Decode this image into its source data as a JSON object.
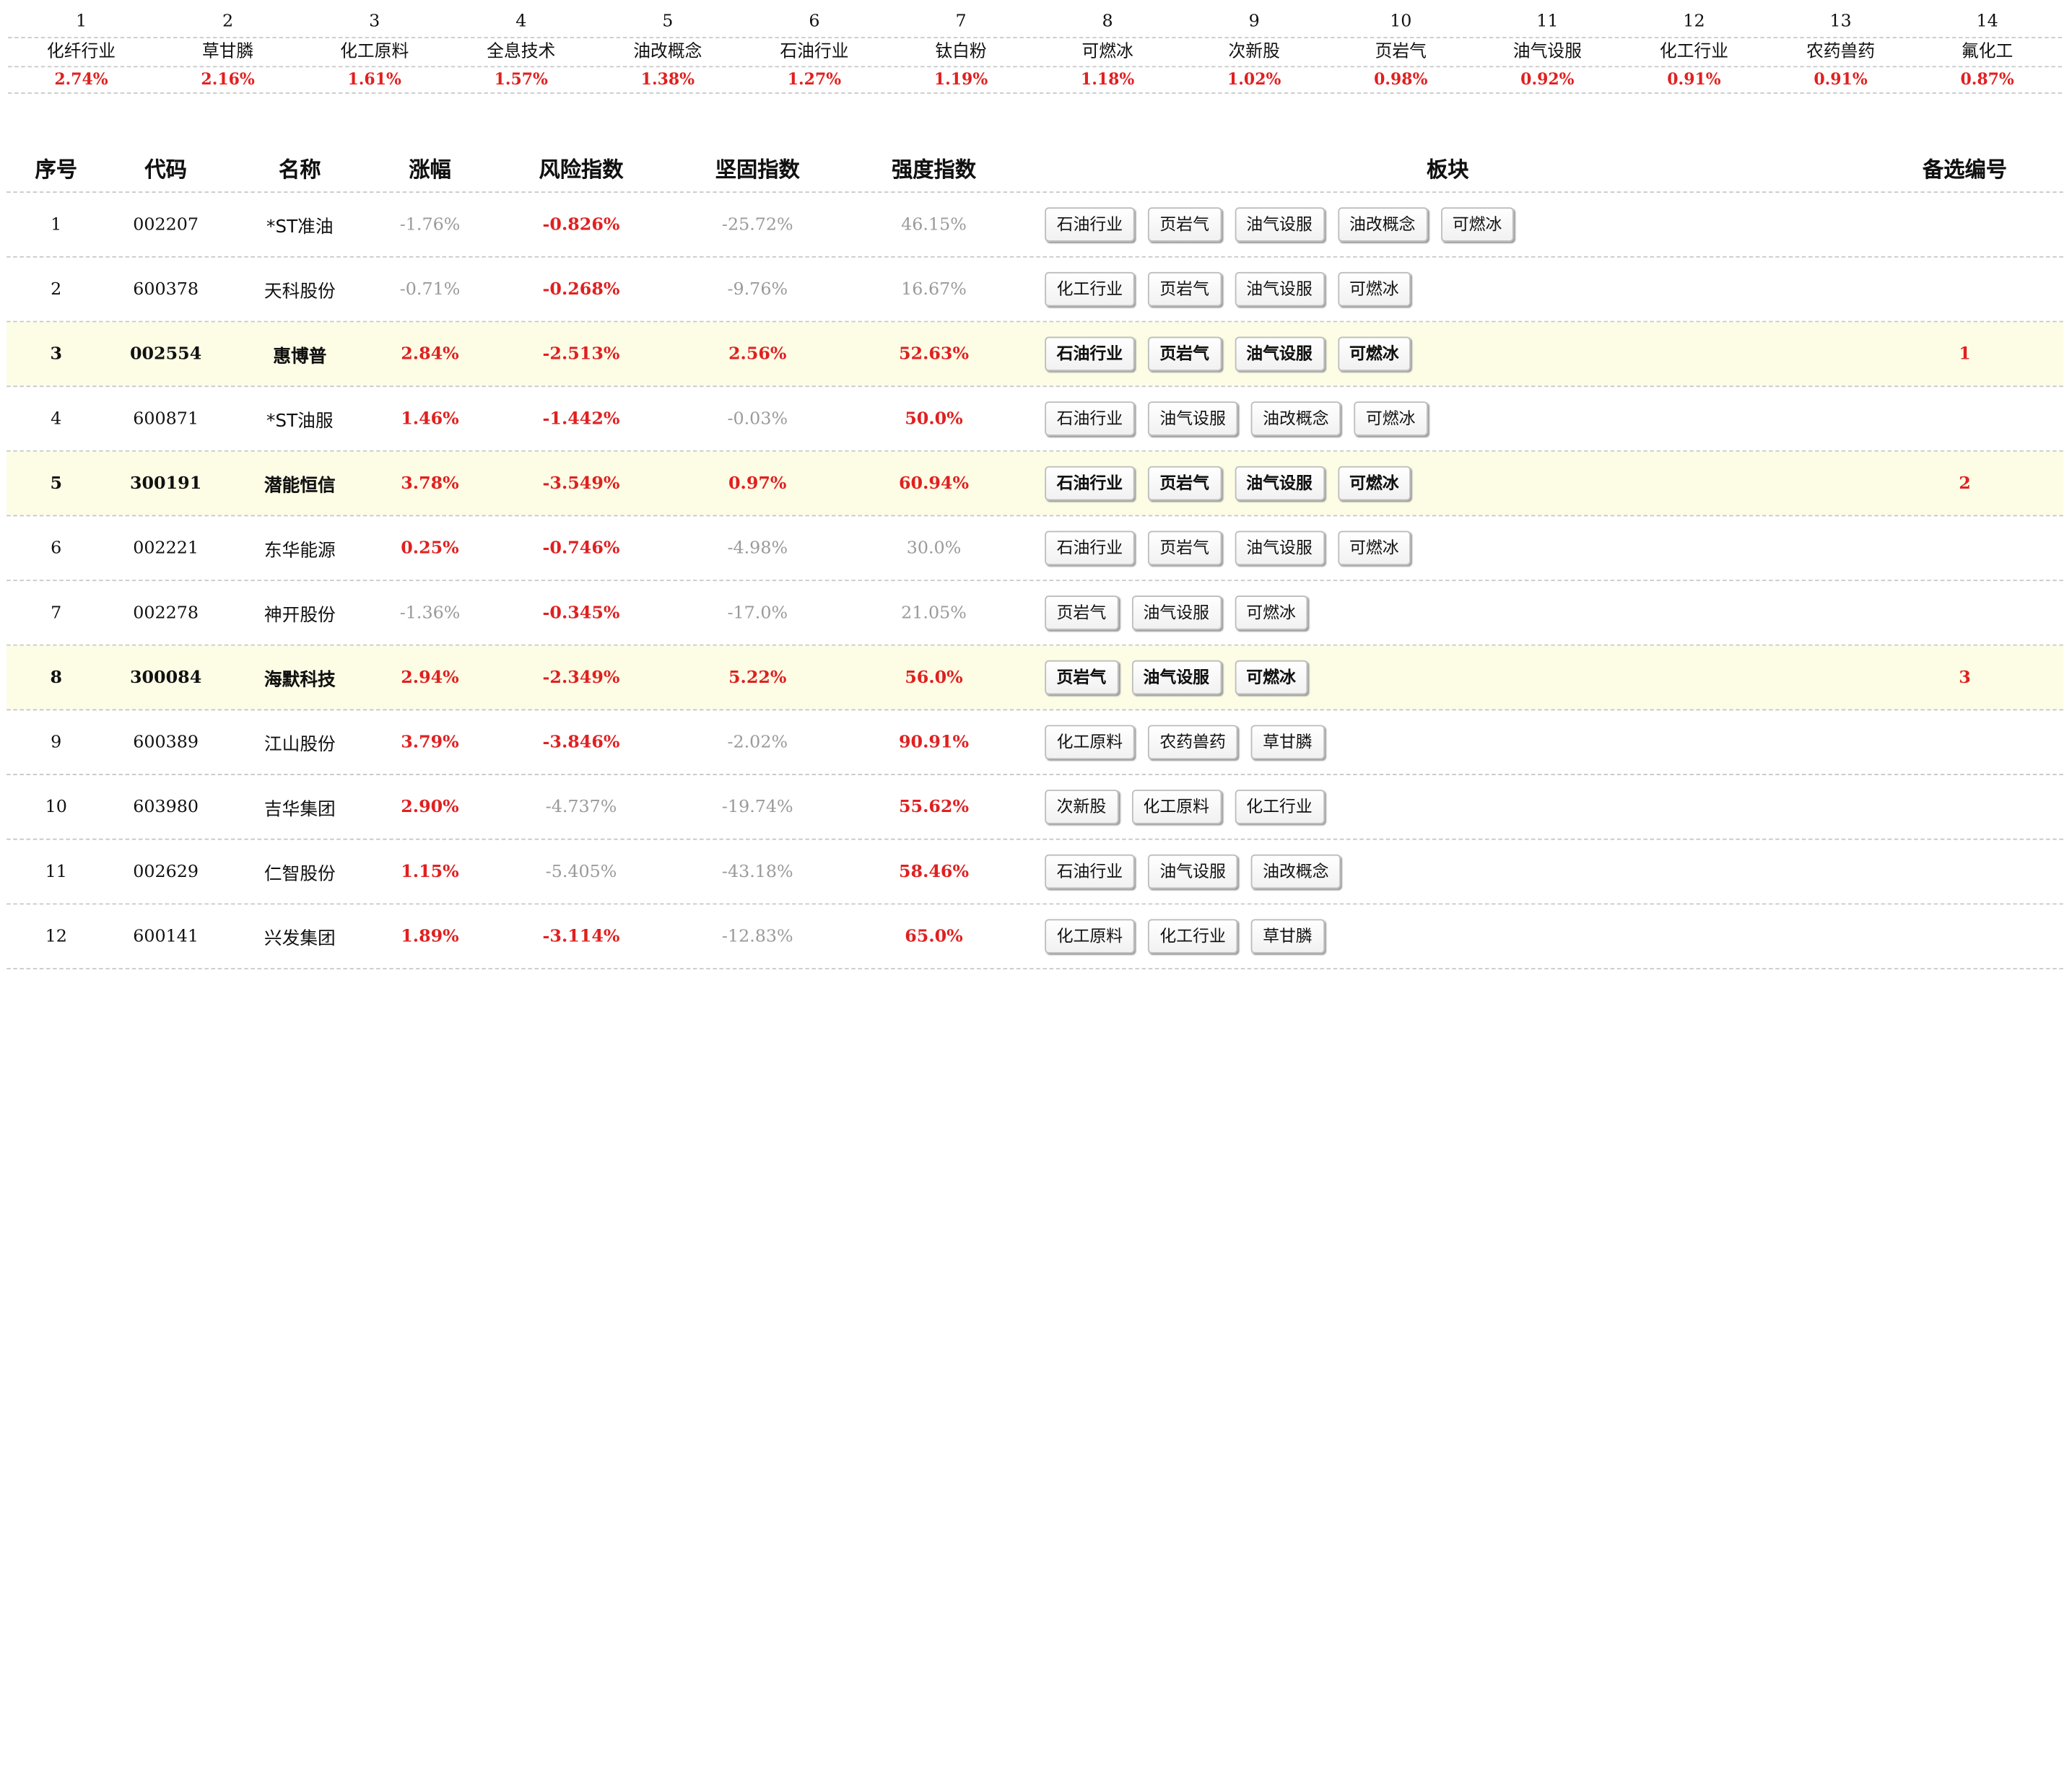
{
  "top_sectors": [
    {
      "rank": "1",
      "name": "化纤行业",
      "pct": "2.74%"
    },
    {
      "rank": "2",
      "name": "草甘膦",
      "pct": "2.16%"
    },
    {
      "rank": "3",
      "name": "化工原料",
      "pct": "1.61%"
    },
    {
      "rank": "4",
      "name": "全息技术",
      "pct": "1.57%"
    },
    {
      "rank": "5",
      "name": "油改概念",
      "pct": "1.38%"
    },
    {
      "rank": "6",
      "name": "石油行业",
      "pct": "1.27%"
    },
    {
      "rank": "7",
      "name": "钛白粉",
      "pct": "1.19%"
    },
    {
      "rank": "8",
      "name": "可燃冰",
      "pct": "1.18%"
    },
    {
      "rank": "9",
      "name": "次新股",
      "pct": "1.02%"
    },
    {
      "rank": "10",
      "name": "页岩气",
      "pct": "0.98%"
    },
    {
      "rank": "11",
      "name": "油气设服",
      "pct": "0.92%"
    },
    {
      "rank": "12",
      "name": "化工行业",
      "pct": "0.91%"
    },
    {
      "rank": "13",
      "name": "农药兽药",
      "pct": "0.91%"
    },
    {
      "rank": "14",
      "name": "氟化工",
      "pct": "0.87%"
    }
  ],
  "table": {
    "headers": {
      "idx": "序号",
      "code": "代码",
      "name": "名称",
      "change": "涨幅",
      "risk": "风险指数",
      "solid": "坚固指数",
      "strength": "强度指数",
      "sectors": "板块",
      "pick": "备选编号"
    },
    "rows": [
      {
        "idx": "1",
        "code": "002207",
        "name": "*ST准油",
        "change": "-1.76%",
        "risk": "-0.826%",
        "solid": "-25.72%",
        "strength": "46.15%",
        "sectors": [
          "石油行业",
          "页岩气",
          "油气设服",
          "油改概念",
          "可燃冰"
        ],
        "pick": "",
        "highlight": false,
        "change_red": false,
        "risk_red": true,
        "solid_red": false,
        "strength_red": false
      },
      {
        "idx": "2",
        "code": "600378",
        "name": "天科股份",
        "change": "-0.71%",
        "risk": "-0.268%",
        "solid": "-9.76%",
        "strength": "16.67%",
        "sectors": [
          "化工行业",
          "页岩气",
          "油气设服",
          "可燃冰"
        ],
        "pick": "",
        "highlight": false,
        "change_red": false,
        "risk_red": true,
        "solid_red": false,
        "strength_red": false
      },
      {
        "idx": "3",
        "code": "002554",
        "name": "惠博普",
        "change": "2.84%",
        "risk": "-2.513%",
        "solid": "2.56%",
        "strength": "52.63%",
        "sectors": [
          "石油行业",
          "页岩气",
          "油气设服",
          "可燃冰"
        ],
        "pick": "1",
        "highlight": true,
        "change_red": true,
        "risk_red": true,
        "solid_red": true,
        "strength_red": true
      },
      {
        "idx": "4",
        "code": "600871",
        "name": "*ST油服",
        "change": "1.46%",
        "risk": "-1.442%",
        "solid": "-0.03%",
        "strength": "50.0%",
        "sectors": [
          "石油行业",
          "油气设服",
          "油改概念",
          "可燃冰"
        ],
        "pick": "",
        "highlight": false,
        "change_red": true,
        "risk_red": true,
        "solid_red": false,
        "strength_red": true
      },
      {
        "idx": "5",
        "code": "300191",
        "name": "潜能恒信",
        "change": "3.78%",
        "risk": "-3.549%",
        "solid": "0.97%",
        "strength": "60.94%",
        "sectors": [
          "石油行业",
          "页岩气",
          "油气设服",
          "可燃冰"
        ],
        "pick": "2",
        "highlight": true,
        "change_red": true,
        "risk_red": true,
        "solid_red": true,
        "strength_red": true
      },
      {
        "idx": "6",
        "code": "002221",
        "name": "东华能源",
        "change": "0.25%",
        "risk": "-0.746%",
        "solid": "-4.98%",
        "strength": "30.0%",
        "sectors": [
          "石油行业",
          "页岩气",
          "油气设服",
          "可燃冰"
        ],
        "pick": "",
        "highlight": false,
        "change_red": true,
        "risk_red": true,
        "solid_red": false,
        "strength_red": false
      },
      {
        "idx": "7",
        "code": "002278",
        "name": "神开股份",
        "change": "-1.36%",
        "risk": "-0.345%",
        "solid": "-17.0%",
        "strength": "21.05%",
        "sectors": [
          "页岩气",
          "油气设服",
          "可燃冰"
        ],
        "pick": "",
        "highlight": false,
        "change_red": false,
        "risk_red": true,
        "solid_red": false,
        "strength_red": false
      },
      {
        "idx": "8",
        "code": "300084",
        "name": "海默科技",
        "change": "2.94%",
        "risk": "-2.349%",
        "solid": "5.22%",
        "strength": "56.0%",
        "sectors": [
          "页岩气",
          "油气设服",
          "可燃冰"
        ],
        "pick": "3",
        "highlight": true,
        "change_red": true,
        "risk_red": true,
        "solid_red": true,
        "strength_red": true
      },
      {
        "idx": "9",
        "code": "600389",
        "name": "江山股份",
        "change": "3.79%",
        "risk": "-3.846%",
        "solid": "-2.02%",
        "strength": "90.91%",
        "sectors": [
          "化工原料",
          "农药兽药",
          "草甘膦"
        ],
        "pick": "",
        "highlight": false,
        "change_red": true,
        "risk_red": true,
        "solid_red": false,
        "strength_red": true
      },
      {
        "idx": "10",
        "code": "603980",
        "name": "吉华集团",
        "change": "2.90%",
        "risk": "-4.737%",
        "solid": "-19.74%",
        "strength": "55.62%",
        "sectors": [
          "次新股",
          "化工原料",
          "化工行业"
        ],
        "pick": "",
        "highlight": false,
        "change_red": true,
        "risk_red": false,
        "solid_red": false,
        "strength_red": true
      },
      {
        "idx": "11",
        "code": "002629",
        "name": "仁智股份",
        "change": "1.15%",
        "risk": "-5.405%",
        "solid": "-43.18%",
        "strength": "58.46%",
        "sectors": [
          "石油行业",
          "油气设服",
          "油改概念"
        ],
        "pick": "",
        "highlight": false,
        "change_red": true,
        "risk_red": false,
        "solid_red": false,
        "strength_red": true
      },
      {
        "idx": "12",
        "code": "600141",
        "name": "兴发集团",
        "change": "1.89%",
        "risk": "-3.114%",
        "solid": "-12.83%",
        "strength": "65.0%",
        "sectors": [
          "化工原料",
          "化工行业",
          "草甘膦"
        ],
        "pick": "",
        "highlight": false,
        "change_red": true,
        "risk_red": true,
        "solid_red": false,
        "strength_red": true
      }
    ]
  },
  "colors": {
    "positive_red": "#e02020",
    "muted_gray": "#9a9a9a",
    "highlight_row": "#fdfde6",
    "dashed_separator": "#c8c8c8"
  }
}
